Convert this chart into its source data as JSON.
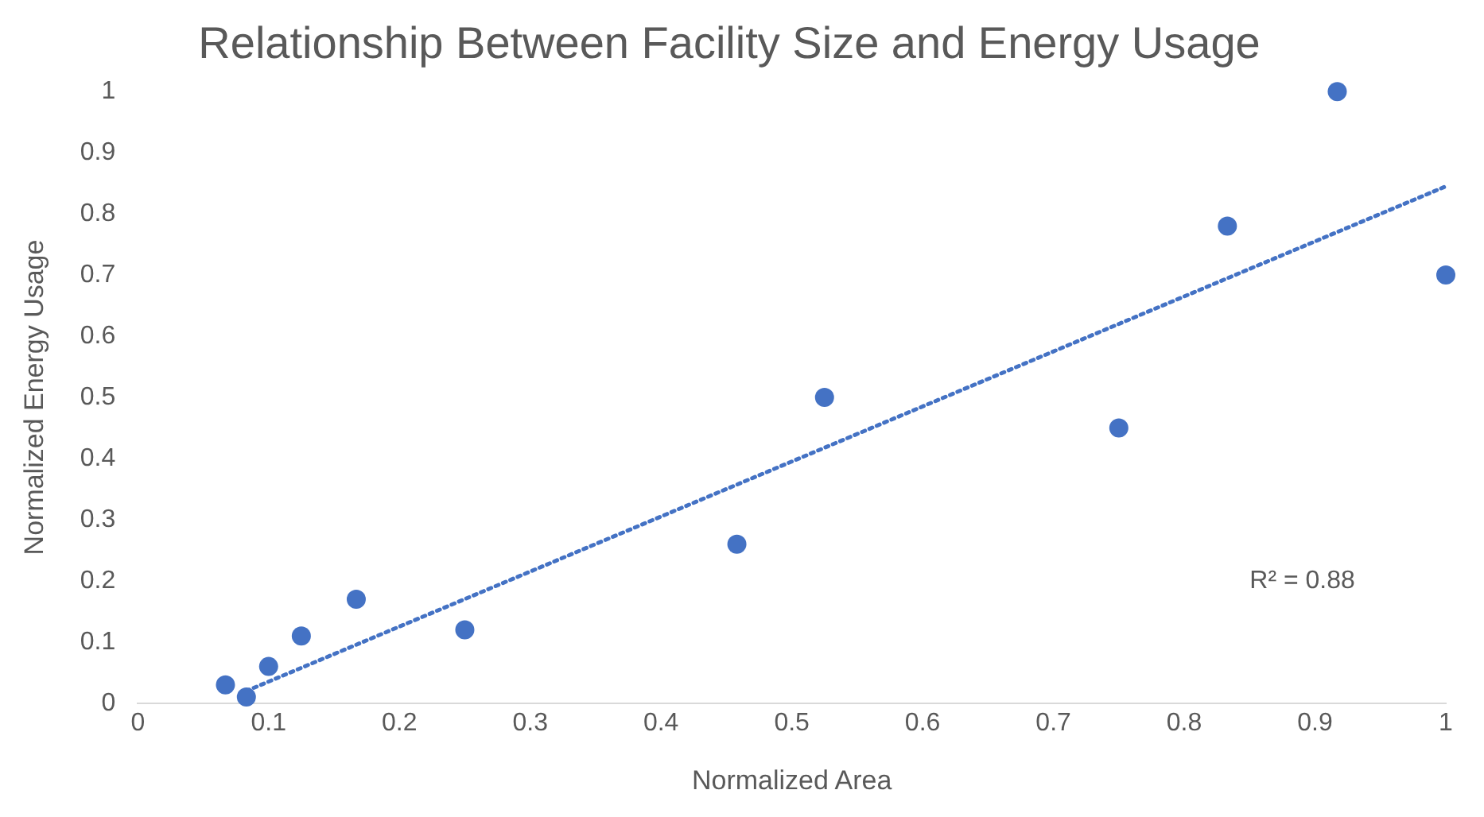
{
  "chart_data": {
    "type": "scatter",
    "title": "Relationship Between Facility Size and Energy Usage",
    "xlabel": "Normalized Area",
    "ylabel": "Normalized Energy Usage",
    "xlim": [
      0,
      1
    ],
    "xticks": [
      0,
      0.1,
      0.2,
      0.3,
      0.4,
      0.5,
      0.6,
      0.7,
      0.8,
      0.9,
      1
    ],
    "ylim": [
      0,
      1
    ],
    "yticks": [
      0,
      0.1,
      0.2,
      0.3,
      0.4,
      0.5,
      0.6,
      0.7,
      0.8,
      0.9,
      1
    ],
    "grid": false,
    "legend": false,
    "marker": "circle",
    "annotations": [
      "R² = 0.88"
    ],
    "series": [
      {
        "type": "scatter",
        "color": "#4472c4",
        "x": [
          0.067,
          0.083,
          0.1,
          0.125,
          0.167,
          0.25,
          0.458,
          0.525,
          0.75,
          0.833,
          0.917,
          1
        ],
        "values": [
          0.03,
          0.01,
          0.06,
          0.11,
          0.17,
          0.12,
          0.26,
          0.5,
          0.45,
          0.78,
          1,
          0.7
        ]
      },
      {
        "type": "line",
        "color": "#4472c4",
        "line_style": "dotted",
        "marker": "none",
        "x": [
          0.083,
          1
        ],
        "values": [
          0.02,
          0.845
        ]
      }
    ]
  }
}
